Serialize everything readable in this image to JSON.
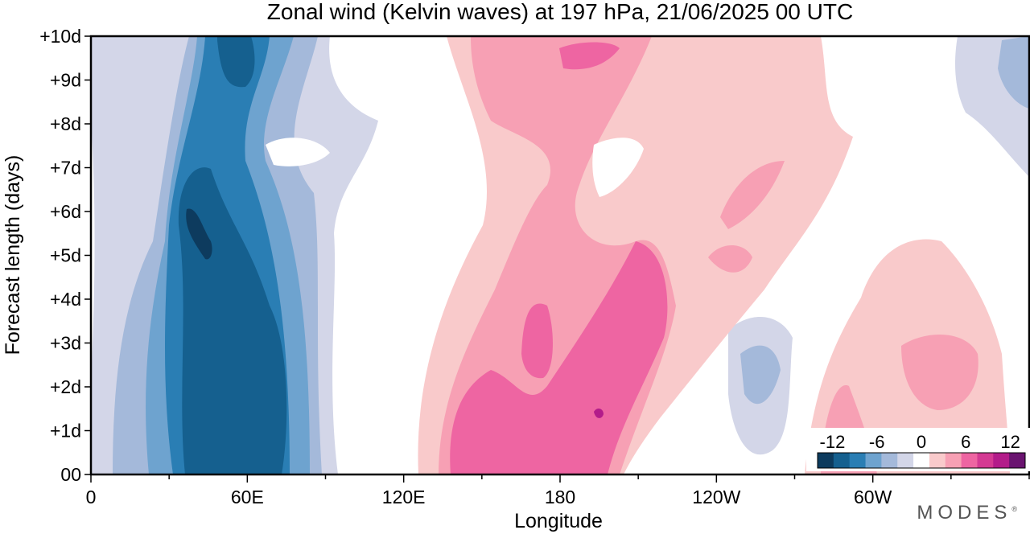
{
  "chart_data": {
    "type": "heatmap",
    "title": "Zonal wind (Kelvin waves) at 197 hPa,  21/06/2025  00 UTC",
    "xlabel": "Longitude",
    "ylabel": "Forecast length (days)",
    "x_ticks": [
      "0",
      "60E",
      "120E",
      "180",
      "120W",
      "60W"
    ],
    "x_tick_values": [
      0,
      60,
      120,
      180,
      240,
      300
    ],
    "y_ticks": [
      "00",
      "+1d",
      "+2d",
      "+3d",
      "+4d",
      "+5d",
      "+6d",
      "+7d",
      "+8d",
      "+9d",
      "+10d"
    ],
    "xlim": [
      0,
      360
    ],
    "ylim": [
      0,
      10
    ],
    "colorbar": {
      "tick_labels": [
        "-12",
        "-6",
        "0",
        "6",
        "12"
      ],
      "tick_values": [
        -12,
        -6,
        0,
        6,
        12
      ],
      "levels": [
        -14,
        -12,
        -10,
        -8,
        -6,
        -4,
        -2,
        2,
        4,
        6,
        8,
        10,
        12,
        14
      ],
      "colors": [
        "#0d3b5e",
        "#15608f",
        "#2a7eb4",
        "#6ea3cf",
        "#a4b9da",
        "#d3d6e8",
        "#ffffff",
        "#f9cacb",
        "#f7a0b4",
        "#ee65a2",
        "#d43a93",
        "#b31c8a",
        "#6a1470"
      ]
    },
    "features": [
      {
        "name": "negative anomaly band",
        "lon_start_day0": 30,
        "lon_end_day0": 75,
        "lon_start_day10": 45,
        "lon_end_day10": 70,
        "peak": -12
      },
      {
        "name": "positive anomaly band",
        "lon_start_day0": 140,
        "lon_end_day0": 195,
        "lon_start_day10": 160,
        "lon_end_day10": 210,
        "peak": 10
      },
      {
        "name": "weak positive region",
        "lon_start": 295,
        "lon_end": 340,
        "day_start": 0,
        "day_end": 5,
        "peak": 6
      }
    ]
  },
  "watermark": "MODES"
}
